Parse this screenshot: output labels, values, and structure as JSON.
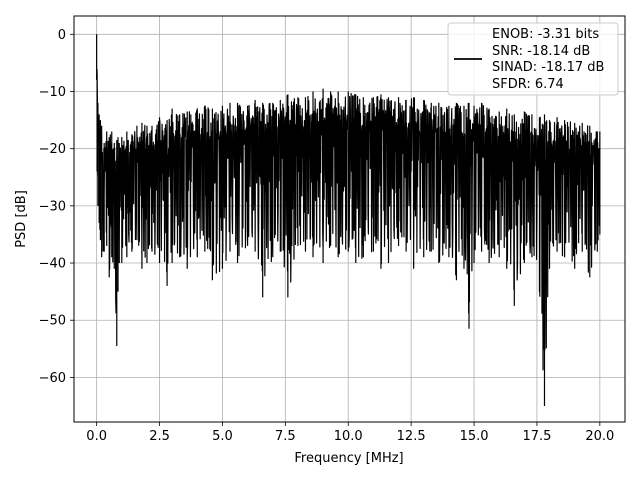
{
  "chart_data": {
    "type": "line",
    "title": "",
    "xlabel": "Frequency [MHz]",
    "ylabel": "PSD [dB]",
    "xlim": [
      -0.9,
      21.0
    ],
    "ylim": [
      -67.8,
      3.2
    ],
    "xticks": [
      0.0,
      2.5,
      5.0,
      7.5,
      10.0,
      12.5,
      15.0,
      17.5,
      20.0
    ],
    "xtick_labels": [
      "0.0",
      "2.5",
      "5.0",
      "7.5",
      "10.0",
      "12.5",
      "15.0",
      "17.5",
      "20.0"
    ],
    "yticks": [
      0,
      -10,
      -20,
      -30,
      -40,
      -50,
      -60
    ],
    "ytick_labels": [
      "0",
      "−10",
      "−20",
      "−30",
      "−40",
      "−50",
      "−60"
    ],
    "grid": true,
    "legend_position": "top-right",
    "legend_lines": [
      "ENOB: -3.31 bits",
      "SNR: -18.14 dB",
      "SINAD: -18.17 dB",
      "SFDR: 6.74"
    ],
    "series": [
      {
        "color": "#000000",
        "x": [
          0.0,
          0.02,
          0.05,
          0.1,
          0.15,
          0.2,
          0.3,
          0.4,
          0.5,
          0.6,
          0.7,
          0.8,
          0.85,
          0.9,
          1.0,
          1.2,
          1.4,
          1.6,
          1.8,
          2.0,
          2.2,
          2.5,
          2.8,
          3.0,
          3.3,
          3.6,
          4.0,
          4.3,
          4.6,
          5.0,
          5.3,
          5.6,
          6.0,
          6.3,
          6.6,
          7.0,
          7.3,
          7.6,
          8.0,
          8.3,
          8.6,
          9.0,
          9.3,
          9.6,
          10.0,
          10.3,
          10.6,
          11.0,
          11.3,
          11.6,
          12.0,
          12.3,
          12.6,
          13.0,
          13.3,
          13.6,
          14.0,
          14.3,
          14.6,
          14.8,
          15.0,
          15.3,
          15.6,
          16.0,
          16.3,
          16.6,
          17.0,
          17.3,
          17.6,
          17.8,
          18.0,
          18.3,
          18.6,
          19.0,
          19.3,
          19.6,
          19.9,
          20.0
        ],
        "upper": [
          0.0,
          -7.0,
          -12.0,
          -14.0,
          -15.0,
          -16.0,
          -19.0,
          -17.0,
          -18.0,
          -17.0,
          -19.0,
          -18.5,
          -18.0,
          -19.0,
          -18.0,
          -17.0,
          -17.5,
          -16.0,
          -15.5,
          -16.0,
          -16.0,
          -14.5,
          -15.0,
          -13.0,
          -14.0,
          -13.5,
          -13.0,
          -12.5,
          -13.0,
          -12.5,
          -12.0,
          -12.0,
          -12.5,
          -11.5,
          -12.0,
          -12.0,
          -11.5,
          -10.5,
          -11.0,
          -11.0,
          -10.0,
          -9.5,
          -10.0,
          -10.0,
          -10.0,
          -10.5,
          -11.0,
          -11.0,
          -10.5,
          -11.0,
          -11.0,
          -11.5,
          -11.0,
          -11.5,
          -12.0,
          -12.0,
          -12.5,
          -12.0,
          -12.5,
          -12.0,
          -12.5,
          -12.0,
          -13.0,
          -13.5,
          -13.0,
          -14.0,
          -13.5,
          -14.0,
          -14.5,
          -14.0,
          -15.0,
          -14.5,
          -15.0,
          -15.5,
          -15.5,
          -16.0,
          -17.0,
          -17.0
        ],
        "lower": [
          -8.0,
          -24.0,
          -30.0,
          -33.0,
          -36.0,
          -39.0,
          -38.0,
          -37.0,
          -42.5,
          -39.0,
          -41.0,
          -54.5,
          -45.0,
          -40.0,
          -40.0,
          -39.0,
          -38.0,
          -36.0,
          -41.0,
          -40.0,
          -38.0,
          -40.0,
          -44.0,
          -40.0,
          -39.0,
          -41.0,
          -39.0,
          -38.0,
          -43.0,
          -41.0,
          -38.0,
          -40.0,
          -37.0,
          -38.0,
          -46.0,
          -39.0,
          -38.0,
          -46.0,
          -37.0,
          -38.0,
          -39.0,
          -40.0,
          -37.0,
          -39.0,
          -38.0,
          -40.0,
          -39.0,
          -38.0,
          -41.0,
          -40.0,
          -37.0,
          -38.0,
          -41.0,
          -39.0,
          -38.0,
          -40.0,
          -39.0,
          -43.0,
          -41.0,
          -51.5,
          -40.0,
          -38.0,
          -40.0,
          -39.0,
          -41.0,
          -47.5,
          -40.0,
          -39.0,
          -45.0,
          -65.0,
          -41.0,
          -38.0,
          -39.0,
          -41.0,
          -38.0,
          -42.5,
          -38.0,
          -35.0
        ]
      }
    ]
  }
}
